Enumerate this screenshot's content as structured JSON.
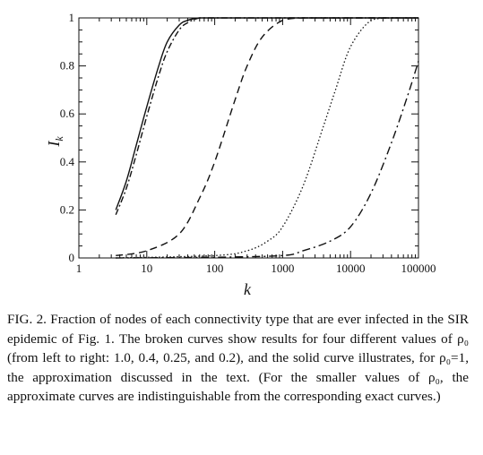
{
  "chart_data": {
    "type": "line",
    "xlabel": "k",
    "ylabel": "I",
    "ylabel_subscript": "k",
    "x_scale": "log",
    "xlim": [
      1,
      100000
    ],
    "ylim": [
      0,
      1
    ],
    "x_ticks": [
      {
        "value": 1,
        "label": "1"
      },
      {
        "value": 10,
        "label": "10"
      },
      {
        "value": 100,
        "label": "100"
      },
      {
        "value": 1000,
        "label": "1000"
      },
      {
        "value": 10000,
        "label": "10000"
      },
      {
        "value": 100000,
        "label": "100000"
      }
    ],
    "y_ticks": [
      {
        "value": 0,
        "label": "0"
      },
      {
        "value": 0.2,
        "label": "0.2"
      },
      {
        "value": 0.4,
        "label": "0.4"
      },
      {
        "value": 0.6,
        "label": "0.6"
      },
      {
        "value": 0.8,
        "label": "0.8"
      },
      {
        "value": 1,
        "label": "1"
      }
    ],
    "grid": false,
    "series": [
      {
        "style": "solid",
        "x": [
          3.5,
          5,
          7,
          10,
          15,
          20,
          30,
          40,
          60,
          100,
          200,
          1000,
          100000
        ],
        "y": [
          0.2,
          0.32,
          0.47,
          0.63,
          0.8,
          0.9,
          0.97,
          0.99,
          1.0,
          1.0,
          1.0,
          1.0,
          1.0
        ]
      },
      {
        "style": "dash-dot-fine",
        "x": [
          3.5,
          5,
          7,
          10,
          15,
          20,
          30,
          40,
          60,
          100,
          200,
          1000,
          100000
        ],
        "y": [
          0.18,
          0.29,
          0.43,
          0.59,
          0.76,
          0.86,
          0.95,
          0.98,
          1.0,
          1.0,
          1.0,
          1.0,
          1.0
        ]
      },
      {
        "style": "dashed",
        "x": [
          3.5,
          10,
          30,
          60,
          100,
          200,
          300,
          500,
          1000,
          2000,
          3000,
          100000
        ],
        "y": [
          0.01,
          0.03,
          0.1,
          0.25,
          0.4,
          0.66,
          0.8,
          0.92,
          0.99,
          1.0,
          1.0,
          1.0
        ]
      },
      {
        "style": "dotted",
        "x": [
          3.5,
          100,
          300,
          600,
          1000,
          2000,
          4000,
          6000,
          10000,
          20000,
          40000,
          100000
        ],
        "y": [
          0.0,
          0.01,
          0.03,
          0.07,
          0.13,
          0.3,
          0.55,
          0.7,
          0.88,
          0.99,
          1.0,
          1.0
        ]
      },
      {
        "style": "dash-dot",
        "x": [
          3.5,
          100,
          1000,
          2000,
          5000,
          10000,
          20000,
          40000,
          70000,
          100000
        ],
        "y": [
          0.0,
          0.003,
          0.01,
          0.03,
          0.07,
          0.13,
          0.27,
          0.48,
          0.68,
          0.82
        ]
      }
    ]
  },
  "caption": {
    "text": "FIG. 2. Fraction of nodes of each connectivity type that are ever infected in the SIR epidemic of Fig. 1. The broken curves show results for four different values of ρ₀ (from left to right: 1.0, 0.4, 0.25, and 0.2), and the solid curve illustrates, for ρ₀=1, the approximation discussed in the text. (For the smaller values of ρ₀, the approximate curves are indistinguishable from the corresponding exact curves.)"
  }
}
